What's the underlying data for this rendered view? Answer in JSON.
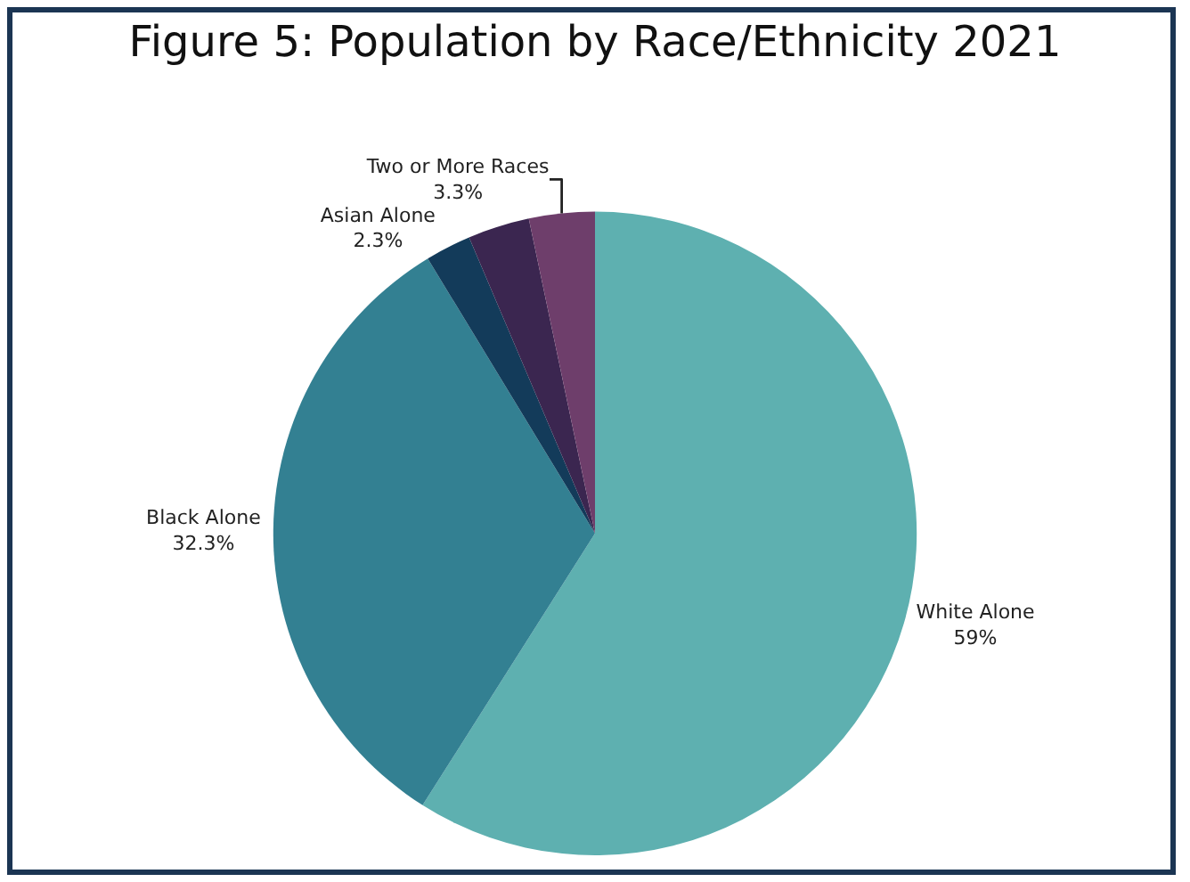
{
  "chart_data": {
    "type": "pie",
    "title": "Figure 5: Population by Race/Ethnicity 2021",
    "categories": [
      "White Alone",
      "Black Alone",
      "Asian Alone",
      null,
      "Two or More Races"
    ],
    "values": [
      59,
      32.3,
      2.3,
      3.1,
      3.3
    ],
    "value_labels": [
      "59%",
      "32.3%",
      "2.3%",
      null,
      "3.3%"
    ],
    "colors": [
      "#5eb0b0",
      "#338092",
      "#133b5a",
      "#3b2650",
      "#6e3e6b"
    ],
    "legend": false
  }
}
